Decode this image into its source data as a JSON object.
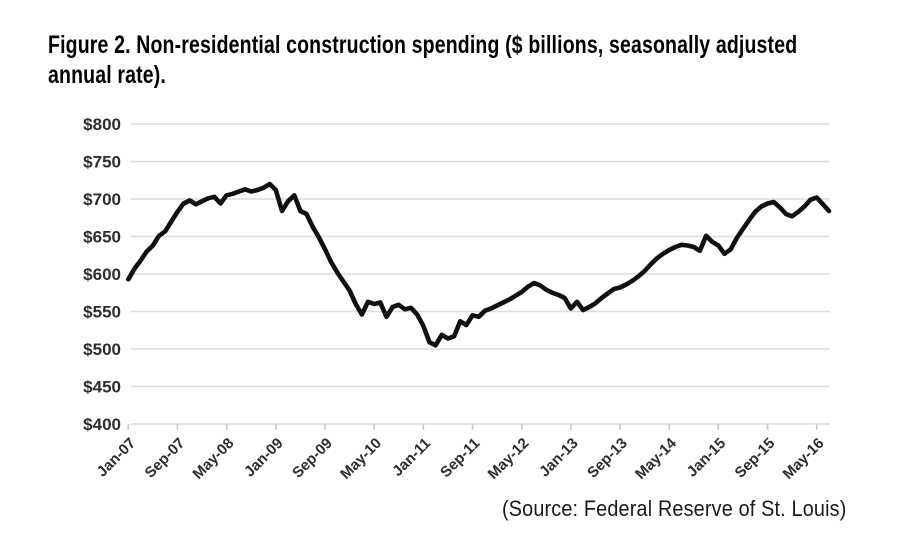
{
  "figure": {
    "title_line1": "Figure 2. Non-residential construction spending ($ billions, seasonally adjusted",
    "title_line2": "annual rate).",
    "source": "(Source: Federal Reserve of St. Louis)"
  },
  "chart_data": {
    "type": "line",
    "title": "Figure 2. Non-residential construction spending ($ billions, seasonally adjusted annual rate).",
    "source": "(Source: Federal Reserve of St. Louis)",
    "x_start_month": "Jan-07",
    "x_end_month": "Jul-16",
    "x_interval": "1 month",
    "x_tick_labels": [
      "Jan-07",
      "Sep-07",
      "May-08",
      "Jan-09",
      "Sep-09",
      "May-10",
      "Jan-11",
      "Sep-11",
      "May-12",
      "Jan-13",
      "Sep-13",
      "May-14",
      "Jan-15",
      "Sep-15",
      "May-16"
    ],
    "x_tick_interval_months": 8,
    "y_tick_labels": [
      "$400",
      "$450",
      "$500",
      "$550",
      "$600",
      "$650",
      "$700",
      "$750",
      "$800"
    ],
    "ylim": [
      400,
      800
    ],
    "grid": true,
    "legend": "none",
    "line_color": "#111111",
    "grid_color": "#dcdcdc",
    "tick_color": "#c9c9c9",
    "axis_label_color": "#2d2d2d",
    "series": [
      {
        "name": "Non-residential construction spending ($ billions, SAAR)",
        "values": [
          593,
          607,
          618,
          630,
          638,
          651,
          657,
          670,
          683,
          694,
          698,
          693,
          697,
          701,
          703,
          694,
          705,
          707,
          710,
          713,
          710,
          712,
          715,
          720,
          712,
          684,
          697,
          705,
          684,
          680,
          663,
          649,
          633,
          616,
          602,
          590,
          578,
          560,
          546,
          563,
          560,
          562,
          543,
          556,
          559,
          553,
          555,
          546,
          531,
          509,
          505,
          519,
          514,
          517,
          537,
          532,
          545,
          543,
          551,
          554,
          558,
          562,
          566,
          571,
          576,
          583,
          588,
          585,
          579,
          575,
          572,
          568,
          554,
          563,
          552,
          556,
          561,
          568,
          574,
          580,
          582,
          586,
          591,
          597,
          604,
          613,
          621,
          627,
          632,
          636,
          639,
          638,
          636,
          631,
          651,
          643,
          638,
          627,
          633,
          648,
          660,
          672,
          683,
          690,
          694,
          696,
          689,
          680,
          677,
          683,
          690,
          699,
          702,
          693,
          684
        ]
      }
    ]
  }
}
